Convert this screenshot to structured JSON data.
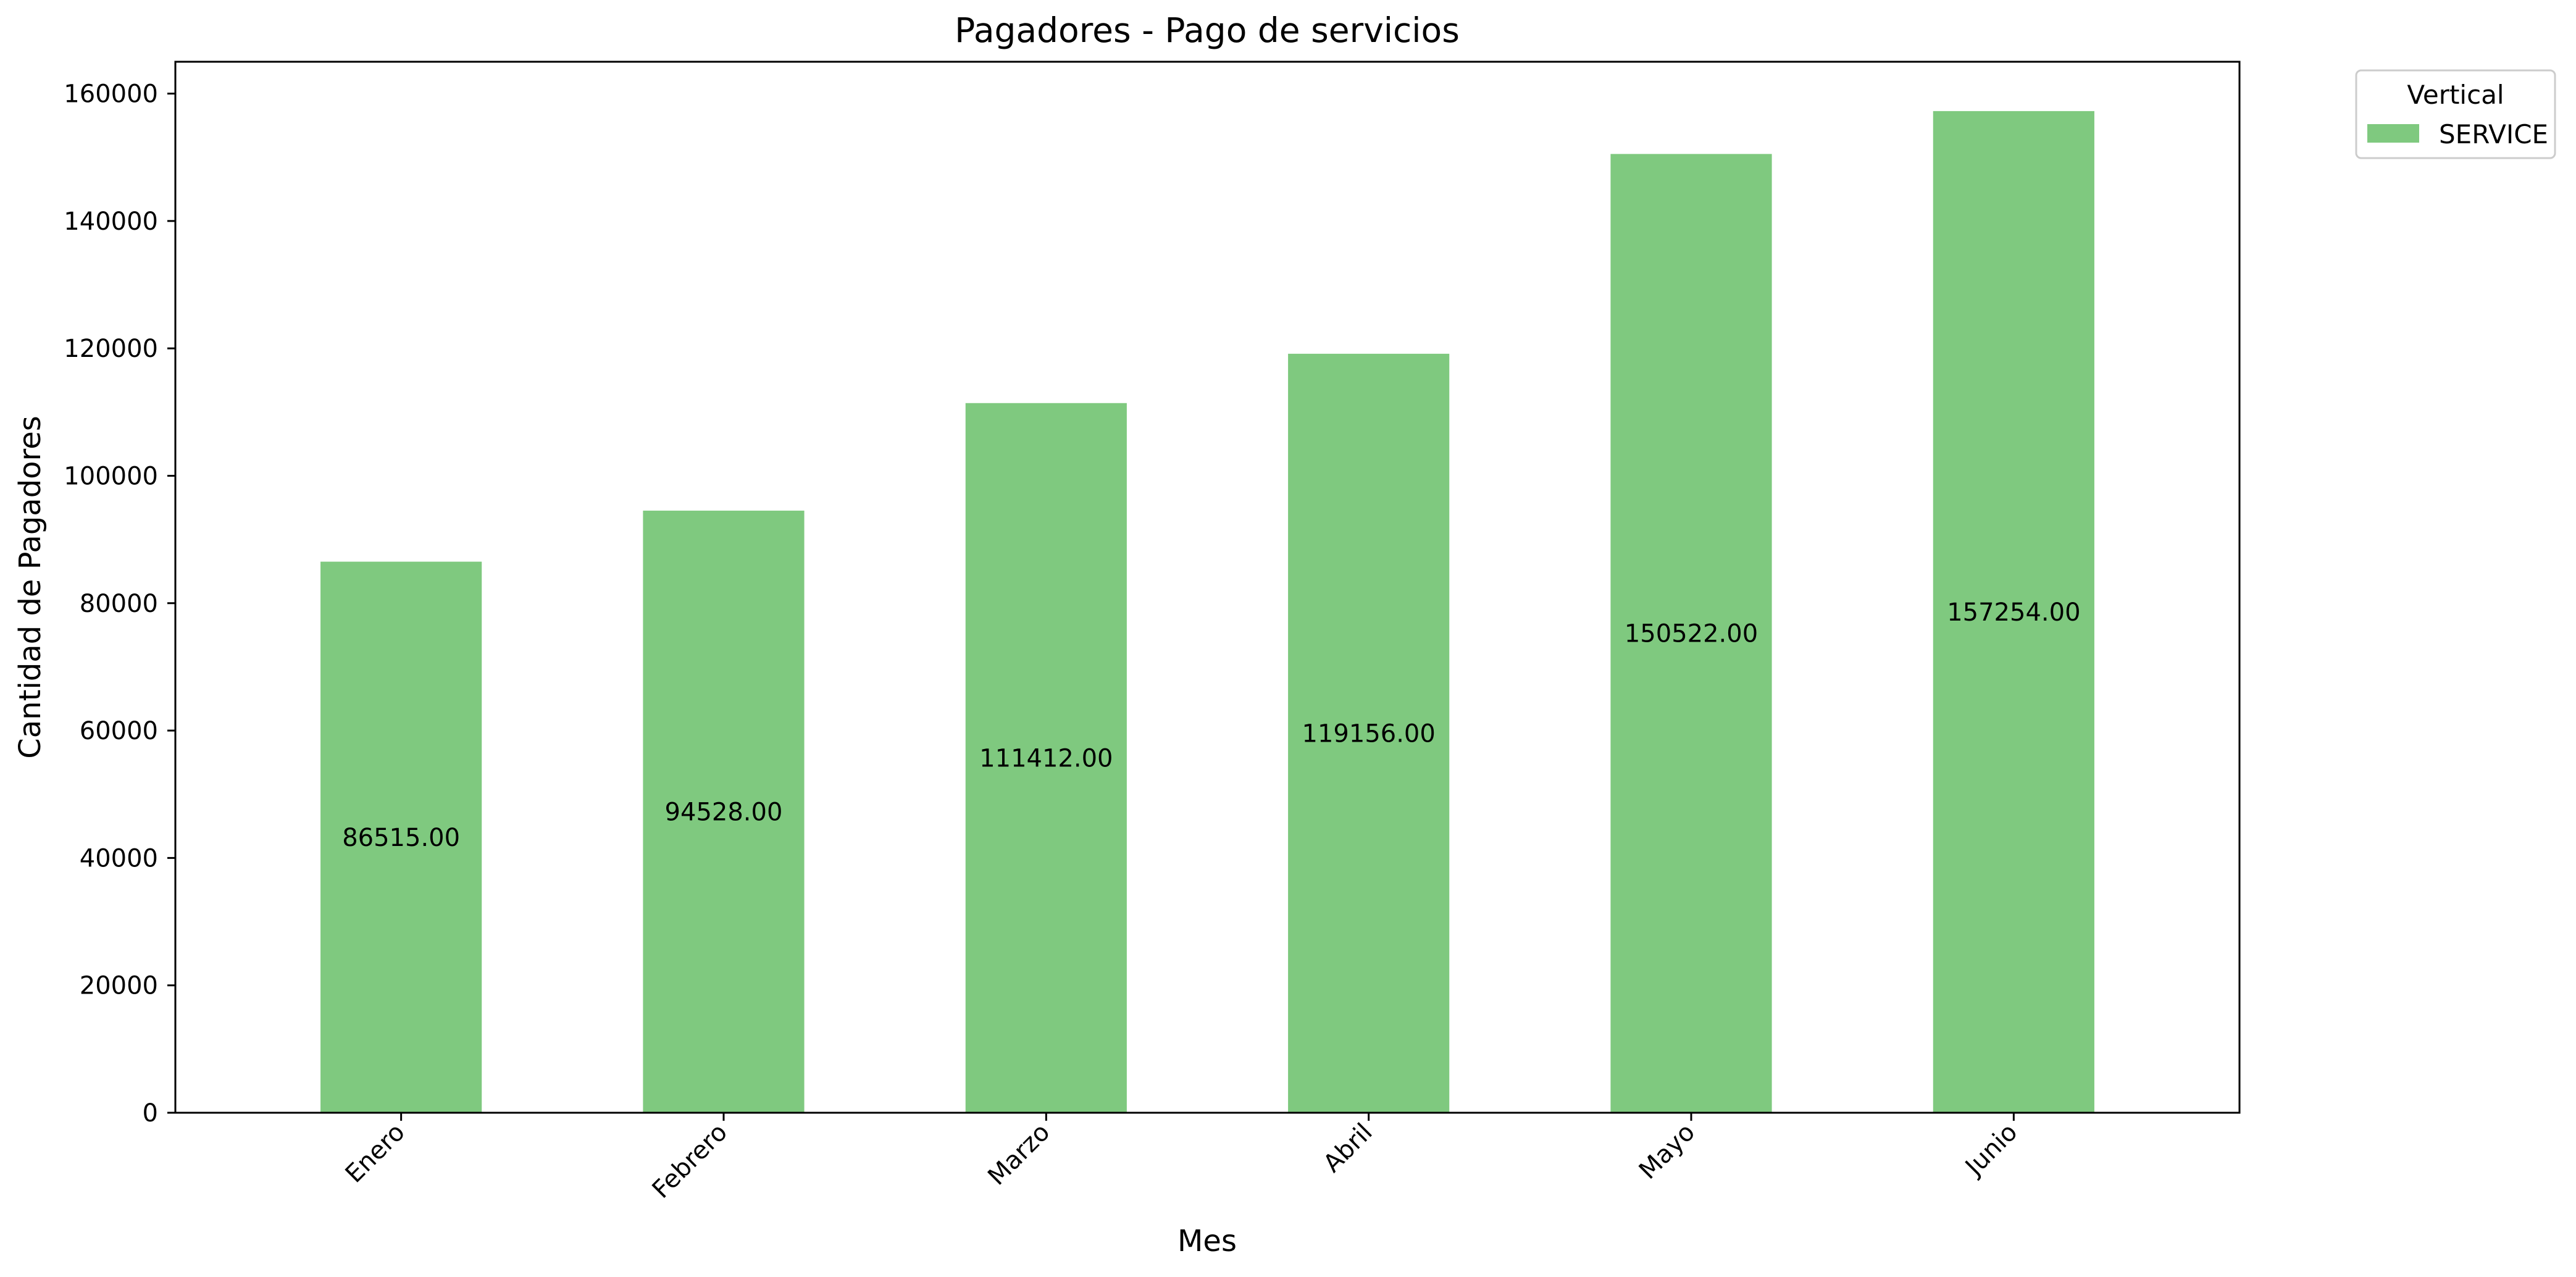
{
  "chart_data": {
    "type": "bar",
    "title": "Pagadores - Pago de servicios",
    "xlabel": "Mes",
    "ylabel": "Cantidad de Pagadores",
    "categories": [
      "Enero",
      "Febrero",
      "Marzo",
      "Abril",
      "Mayo",
      "Junio"
    ],
    "series": [
      {
        "name": "SERVICE",
        "color": "#7fc97f",
        "values": [
          86515,
          94528,
          111412,
          119156,
          150522,
          157254
        ],
        "labels": [
          "86515.00",
          "94528.00",
          "111412.00",
          "119156.00",
          "150522.00",
          "157254.00"
        ]
      }
    ],
    "ylim": [
      0,
      165000
    ],
    "yticks": [
      0,
      20000,
      40000,
      60000,
      80000,
      100000,
      120000,
      140000,
      160000
    ],
    "grid": false,
    "legend": {
      "title": "Vertical",
      "placement": "outside-top-right"
    }
  }
}
